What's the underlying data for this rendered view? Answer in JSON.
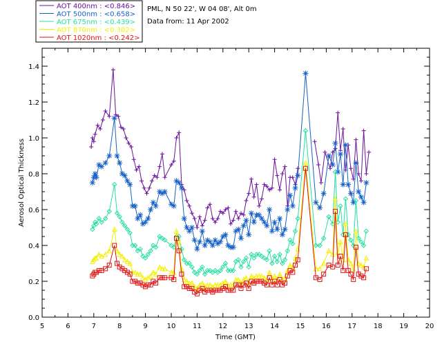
{
  "header": {
    "station": "PML, N 50 22', W 04 08', Alt 0m",
    "date": "Data from: 11 Apr 2002"
  },
  "legend": [
    {
      "label": "AOT  400nm : <0.846>",
      "color": "#6a0f9a"
    },
    {
      "label": "AOT  500nm : <0.658>",
      "color": "#1560c8"
    },
    {
      "label": "AOT  675nm : <0.439>",
      "color": "#22e0a0"
    },
    {
      "label": "AOT  870nm : <0.302>",
      "color": "#f2f000"
    },
    {
      "label": "AOT 1020nm : <0.242>",
      "color": "#e01010"
    }
  ],
  "chart_data": {
    "type": "line",
    "title": "",
    "xlabel": "Time (GMT)",
    "ylabel": "Aerosol Optical Thickness",
    "xlim": [
      5,
      20
    ],
    "ylim": [
      0.0,
      1.5
    ],
    "xticks": [
      "5",
      "6",
      "7",
      "8",
      "9",
      "10",
      "11",
      "12",
      "13",
      "14",
      "15",
      "16",
      "17",
      "18",
      "19",
      "20"
    ],
    "yticks": [
      "0.0",
      "0.2",
      "0.4",
      "0.6",
      "0.8",
      "1.0",
      "1.2",
      "1.4"
    ],
    "series": [
      {
        "name": "AOT 400nm",
        "marker": "plus",
        "color": "#6a0f9a",
        "x": [
          6.9,
          6.95,
          7.0,
          7.05,
          7.15,
          7.25,
          7.35,
          7.45,
          7.6,
          7.75,
          7.85,
          7.95,
          8.05,
          8.15,
          8.25,
          8.35,
          8.45,
          8.55,
          8.65,
          8.75,
          8.85,
          8.95,
          9.05,
          9.15,
          9.25,
          9.35,
          9.45,
          9.55,
          9.65,
          9.75,
          10.0,
          10.1,
          10.2,
          10.3,
          10.4,
          10.5,
          10.6,
          10.7,
          10.8,
          10.9,
          11.0,
          11.1,
          11.2,
          11.3,
          11.4,
          11.5,
          11.6,
          11.7,
          11.8,
          11.9,
          12.0,
          12.1,
          12.2,
          12.3,
          12.4,
          12.5,
          12.6,
          12.7,
          12.8,
          12.9,
          13.0,
          13.1,
          13.2,
          13.3,
          13.4,
          13.5,
          13.6,
          13.7,
          13.8,
          13.9,
          14.0,
          14.1,
          14.2,
          14.3,
          14.4,
          14.5,
          14.6,
          14.7,
          14.8,
          14.9,
          15.55,
          15.7,
          15.8,
          15.95,
          16.15,
          16.25,
          16.35,
          16.45,
          16.55,
          16.65,
          16.75,
          16.85,
          16.95,
          17.05,
          17.15,
          17.25,
          17.35,
          17.45,
          17.55,
          17.65
        ],
        "y": [
          0.95,
          1.0,
          0.98,
          1.02,
          1.07,
          1.05,
          1.1,
          1.15,
          1.12,
          1.38,
          1.13,
          1.12,
          1.06,
          1.05,
          1.0,
          0.97,
          0.95,
          0.88,
          0.82,
          0.84,
          0.76,
          0.72,
          0.69,
          0.72,
          0.76,
          0.79,
          0.78,
          0.84,
          0.91,
          0.78,
          0.85,
          0.87,
          1.0,
          1.03,
          0.74,
          0.71,
          0.65,
          0.62,
          0.58,
          0.55,
          0.5,
          0.56,
          0.51,
          0.54,
          0.61,
          0.63,
          0.55,
          0.53,
          0.55,
          0.59,
          0.58,
          0.6,
          0.61,
          0.52,
          0.54,
          0.59,
          0.55,
          0.58,
          0.57,
          0.65,
          0.69,
          0.77,
          0.67,
          0.74,
          0.62,
          0.66,
          0.74,
          0.73,
          0.71,
          0.72,
          0.88,
          0.79,
          0.71,
          0.8,
          0.84,
          0.62,
          0.78,
          0.78,
          0.74,
          0.83,
          0.98,
          0.85,
          0.75,
          0.92,
          0.83,
          0.92,
          0.94,
          1.14,
          0.93,
          1.05,
          0.82,
          0.96,
          0.83,
          0.77,
          0.99,
          0.8,
          0.76,
          1.04,
          0.8,
          0.92
        ]
      },
      {
        "name": "AOT 500nm",
        "marker": "star",
        "color": "#1560c8",
        "x": [
          6.95,
          7.0,
          7.05,
          7.1,
          7.2,
          7.3,
          7.45,
          7.6,
          7.8,
          7.9,
          8.0,
          8.1,
          8.2,
          8.3,
          8.4,
          8.5,
          8.6,
          8.7,
          8.8,
          8.9,
          9.0,
          9.1,
          9.2,
          9.3,
          9.4,
          9.55,
          9.65,
          9.75,
          10.0,
          10.1,
          10.2,
          10.3,
          10.4,
          10.5,
          10.6,
          10.7,
          10.8,
          10.9,
          11.0,
          11.1,
          11.2,
          11.3,
          11.4,
          11.5,
          11.6,
          11.7,
          11.8,
          11.9,
          12.0,
          12.1,
          12.2,
          12.3,
          12.4,
          12.5,
          12.6,
          12.7,
          12.8,
          12.9,
          13.0,
          13.1,
          13.2,
          13.3,
          13.4,
          13.5,
          13.6,
          13.7,
          13.8,
          13.9,
          14.0,
          14.1,
          14.2,
          14.3,
          14.4,
          14.5,
          14.6,
          14.7,
          14.8,
          14.9,
          15.2,
          15.6,
          15.75,
          15.9,
          16.1,
          16.25,
          16.35,
          16.45,
          16.55,
          16.65,
          16.75,
          16.85,
          16.95,
          17.05,
          17.15,
          17.25,
          17.35,
          17.45,
          17.55
        ],
        "y": [
          0.75,
          0.78,
          0.8,
          0.78,
          0.85,
          0.84,
          0.86,
          0.9,
          1.11,
          0.9,
          0.86,
          0.8,
          0.79,
          0.76,
          0.74,
          0.62,
          0.62,
          0.55,
          0.57,
          0.52,
          0.53,
          0.55,
          0.6,
          0.64,
          0.62,
          0.7,
          0.69,
          0.7,
          0.63,
          0.62,
          0.76,
          0.75,
          0.72,
          0.55,
          0.5,
          0.48,
          0.5,
          0.43,
          0.38,
          0.42,
          0.48,
          0.4,
          0.43,
          0.42,
          0.4,
          0.43,
          0.41,
          0.42,
          0.45,
          0.46,
          0.4,
          0.39,
          0.39,
          0.48,
          0.49,
          0.44,
          0.51,
          0.54,
          0.46,
          0.58,
          0.53,
          0.57,
          0.57,
          0.55,
          0.53,
          0.51,
          0.6,
          0.48,
          0.53,
          0.49,
          0.55,
          0.46,
          0.49,
          0.6,
          0.68,
          0.62,
          0.72,
          0.79,
          1.36,
          0.64,
          0.61,
          0.69,
          0.9,
          0.85,
          0.97,
          0.81,
          0.91,
          0.74,
          0.96,
          0.74,
          0.69,
          0.64,
          0.86,
          0.7,
          0.67,
          0.64,
          0.75
        ]
      },
      {
        "name": "AOT 675nm",
        "marker": "diamond",
        "color": "#22e0a0",
        "x": [
          6.95,
          7.0,
          7.05,
          7.1,
          7.2,
          7.3,
          7.45,
          7.6,
          7.8,
          7.9,
          8.0,
          8.1,
          8.2,
          8.3,
          8.4,
          8.5,
          8.6,
          8.7,
          8.8,
          8.9,
          9.0,
          9.1,
          9.2,
          9.3,
          9.4,
          9.55,
          9.65,
          9.75,
          10.0,
          10.1,
          10.2,
          10.3,
          10.4,
          10.5,
          10.6,
          10.7,
          10.8,
          10.9,
          11.0,
          11.1,
          11.2,
          11.3,
          11.4,
          11.5,
          11.6,
          11.7,
          11.8,
          11.9,
          12.0,
          12.1,
          12.2,
          12.3,
          12.4,
          12.5,
          12.6,
          12.7,
          12.8,
          12.9,
          13.0,
          13.1,
          13.2,
          13.3,
          13.4,
          13.5,
          13.6,
          13.7,
          13.8,
          13.9,
          14.0,
          14.1,
          14.2,
          14.3,
          14.4,
          14.5,
          14.6,
          14.7,
          14.8,
          14.9,
          15.2,
          15.6,
          15.75,
          15.9,
          16.1,
          16.25,
          16.35,
          16.45,
          16.55,
          16.65,
          16.75,
          16.85,
          16.95,
          17.05,
          17.15,
          17.25,
          17.35,
          17.45,
          17.55
        ],
        "y": [
          0.49,
          0.51,
          0.53,
          0.52,
          0.55,
          0.53,
          0.55,
          0.59,
          0.74,
          0.58,
          0.56,
          0.53,
          0.51,
          0.49,
          0.47,
          0.4,
          0.4,
          0.37,
          0.38,
          0.34,
          0.33,
          0.35,
          0.37,
          0.4,
          0.39,
          0.45,
          0.44,
          0.43,
          0.4,
          0.39,
          0.45,
          0.45,
          0.38,
          0.32,
          0.3,
          0.3,
          0.28,
          0.25,
          0.24,
          0.26,
          0.28,
          0.24,
          0.26,
          0.26,
          0.25,
          0.26,
          0.25,
          0.26,
          0.28,
          0.3,
          0.26,
          0.26,
          0.26,
          0.31,
          0.32,
          0.28,
          0.31,
          0.33,
          0.28,
          0.35,
          0.33,
          0.35,
          0.35,
          0.34,
          0.33,
          0.32,
          0.37,
          0.3,
          0.34,
          0.31,
          0.35,
          0.3,
          0.32,
          0.37,
          0.43,
          0.41,
          0.48,
          0.55,
          1.04,
          0.4,
          0.4,
          0.44,
          0.56,
          0.52,
          0.81,
          0.53,
          0.62,
          0.46,
          0.66,
          0.46,
          0.43,
          0.4,
          0.65,
          0.44,
          0.42,
          0.4,
          0.48
        ]
      },
      {
        "name": "AOT 870nm",
        "marker": "triangle",
        "color": "#f2f000",
        "x": [
          6.95,
          7.0,
          7.05,
          7.1,
          7.2,
          7.3,
          7.45,
          7.6,
          7.8,
          7.9,
          8.0,
          8.1,
          8.2,
          8.3,
          8.4,
          8.5,
          8.6,
          8.7,
          8.8,
          8.9,
          9.0,
          9.1,
          9.2,
          9.3,
          9.4,
          9.55,
          9.65,
          9.75,
          10.0,
          10.1,
          10.2,
          10.3,
          10.4,
          10.5,
          10.6,
          10.7,
          10.8,
          10.9,
          11.0,
          11.1,
          11.2,
          11.3,
          11.4,
          11.5,
          11.6,
          11.7,
          11.8,
          11.9,
          12.0,
          12.1,
          12.2,
          12.3,
          12.4,
          12.5,
          12.6,
          12.7,
          12.8,
          12.9,
          13.0,
          13.1,
          13.2,
          13.3,
          13.4,
          13.5,
          13.6,
          13.7,
          13.8,
          13.9,
          14.0,
          14.1,
          14.2,
          14.3,
          14.4,
          14.5,
          14.6,
          14.7,
          14.8,
          14.9,
          15.2,
          15.6,
          15.75,
          15.9,
          16.1,
          16.25,
          16.35,
          16.45,
          16.55,
          16.65,
          16.75,
          16.85,
          16.95,
          17.05,
          17.15,
          17.25,
          17.35,
          17.45,
          17.55
        ],
        "y": [
          0.31,
          0.32,
          0.33,
          0.33,
          0.35,
          0.34,
          0.35,
          0.37,
          0.49,
          0.37,
          0.35,
          0.34,
          0.32,
          0.31,
          0.3,
          0.25,
          0.25,
          0.24,
          0.24,
          0.22,
          0.21,
          0.22,
          0.23,
          0.25,
          0.24,
          0.28,
          0.27,
          0.27,
          0.25,
          0.25,
          0.48,
          0.42,
          0.27,
          0.21,
          0.2,
          0.19,
          0.19,
          0.17,
          0.16,
          0.18,
          0.19,
          0.17,
          0.18,
          0.18,
          0.17,
          0.18,
          0.18,
          0.18,
          0.19,
          0.2,
          0.18,
          0.18,
          0.18,
          0.21,
          0.21,
          0.19,
          0.21,
          0.22,
          0.19,
          0.23,
          0.22,
          0.23,
          0.23,
          0.23,
          0.22,
          0.21,
          0.25,
          0.21,
          0.23,
          0.21,
          0.24,
          0.21,
          0.22,
          0.26,
          0.29,
          0.28,
          0.33,
          0.38,
          0.86,
          0.27,
          0.27,
          0.3,
          0.37,
          0.35,
          0.66,
          0.36,
          0.42,
          0.32,
          0.52,
          0.32,
          0.3,
          0.27,
          0.48,
          0.3,
          0.29,
          0.28,
          0.33
        ]
      },
      {
        "name": "AOT 1020nm",
        "marker": "square",
        "color": "#e01010",
        "x": [
          6.95,
          7.0,
          7.05,
          7.1,
          7.2,
          7.3,
          7.45,
          7.6,
          7.8,
          7.9,
          8.0,
          8.1,
          8.2,
          8.3,
          8.4,
          8.5,
          8.6,
          8.7,
          8.8,
          8.9,
          9.0,
          9.1,
          9.2,
          9.3,
          9.4,
          9.55,
          9.65,
          9.75,
          10.0,
          10.1,
          10.2,
          10.3,
          10.4,
          10.5,
          10.6,
          10.7,
          10.8,
          10.9,
          11.0,
          11.1,
          11.2,
          11.3,
          11.4,
          11.5,
          11.6,
          11.7,
          11.8,
          11.9,
          12.0,
          12.1,
          12.2,
          12.3,
          12.4,
          12.5,
          12.6,
          12.7,
          12.8,
          12.9,
          13.0,
          13.1,
          13.2,
          13.3,
          13.4,
          13.5,
          13.6,
          13.7,
          13.8,
          13.9,
          14.0,
          14.1,
          14.2,
          14.3,
          14.4,
          14.5,
          14.6,
          14.7,
          14.8,
          14.9,
          15.2,
          15.6,
          15.75,
          15.9,
          16.1,
          16.25,
          16.35,
          16.45,
          16.55,
          16.65,
          16.75,
          16.85,
          16.95,
          17.05,
          17.15,
          17.25,
          17.35,
          17.45,
          17.55
        ],
        "y": [
          0.23,
          0.24,
          0.25,
          0.25,
          0.26,
          0.26,
          0.27,
          0.29,
          0.4,
          0.3,
          0.28,
          0.27,
          0.26,
          0.25,
          0.24,
          0.2,
          0.2,
          0.19,
          0.19,
          0.18,
          0.17,
          0.18,
          0.18,
          0.2,
          0.19,
          0.22,
          0.22,
          0.22,
          0.22,
          0.21,
          0.44,
          0.37,
          0.24,
          0.17,
          0.17,
          0.16,
          0.16,
          0.14,
          0.13,
          0.15,
          0.16,
          0.14,
          0.15,
          0.15,
          0.14,
          0.15,
          0.15,
          0.15,
          0.16,
          0.17,
          0.15,
          0.15,
          0.15,
          0.18,
          0.18,
          0.16,
          0.18,
          0.19,
          0.16,
          0.2,
          0.19,
          0.2,
          0.2,
          0.2,
          0.19,
          0.18,
          0.22,
          0.18,
          0.2,
          0.18,
          0.21,
          0.18,
          0.19,
          0.23,
          0.26,
          0.25,
          0.29,
          0.32,
          0.83,
          0.22,
          0.21,
          0.24,
          0.29,
          0.28,
          0.59,
          0.29,
          0.34,
          0.26,
          0.46,
          0.26,
          0.24,
          0.21,
          0.39,
          0.24,
          0.23,
          0.22,
          0.27
        ]
      }
    ]
  }
}
